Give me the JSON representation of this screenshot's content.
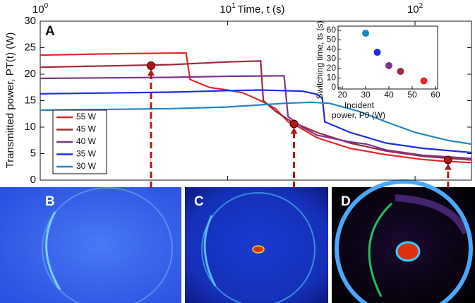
{
  "chart_data": [
    {
      "type": "line",
      "label": "A",
      "xlabel": "Time, t (s)",
      "ylabel": "Transmitted power, PT(t) (W)",
      "log_x": true,
      "xlim": [
        1,
        200
      ],
      "ylim": [
        0,
        30
      ],
      "xticks": [
        {
          "value": 1,
          "label": "10",
          "exponent": "0"
        },
        {
          "value": 10,
          "label": "10",
          "exponent": "1"
        },
        {
          "value": 100,
          "label": "10",
          "exponent": "2"
        }
      ],
      "yticks": [
        0,
        5,
        10,
        15,
        20,
        25,
        30
      ],
      "series": [
        {
          "name": "55 W",
          "color": "#e8262a",
          "x": [
            1,
            3,
            6,
            6.3,
            8,
            10,
            12,
            15,
            18,
            21,
            23,
            30,
            45,
            70,
            110,
            140,
            200
          ],
          "values": [
            23.6,
            23.9,
            24,
            19,
            17.5,
            17,
            16.5,
            15,
            13.5,
            11,
            10.4,
            8,
            6,
            4.8,
            3.9,
            3.6,
            3.3
          ]
        },
        {
          "name": "45 W",
          "color": "#9e2a3a",
          "x": [
            1,
            5,
            10,
            15,
            15.5,
            18,
            22,
            30,
            45,
            70,
            110,
            200
          ],
          "values": [
            21.3,
            21.8,
            22.3,
            22.5,
            15,
            13,
            11,
            9,
            7,
            5.5,
            4.5,
            3.8
          ]
        },
        {
          "name": "40 W",
          "color": "#7b3590",
          "x": [
            1,
            5,
            10,
            20,
            21,
            25,
            30,
            45,
            55,
            70,
            110,
            200
          ],
          "values": [
            19.2,
            19.4,
            19.6,
            19.7,
            12,
            10,
            8.5,
            7.2,
            6.8,
            5.7,
            4.7,
            4.1
          ]
        },
        {
          "name": "35 W",
          "color": "#1a2ee0",
          "x": [
            1,
            5,
            10,
            15,
            25,
            30,
            32,
            33,
            45,
            70,
            110,
            200
          ],
          "values": [
            16.3,
            16.6,
            16.9,
            17,
            16.8,
            16.2,
            15.5,
            11,
            9,
            7,
            6,
            5.2
          ]
        },
        {
          "name": "30 W",
          "color": "#1f86c0",
          "x": [
            1,
            5,
            10,
            20,
            28,
            35,
            50,
            70,
            100,
            150,
            200
          ],
          "values": [
            13.2,
            13.5,
            13.8,
            14.5,
            14.7,
            14.5,
            13,
            11,
            9,
            7.5,
            6.8
          ]
        }
      ],
      "markers": [
        {
          "x": 3.9,
          "y": 21.6
        },
        {
          "x": 22.6,
          "y": 10.6
        },
        {
          "x": 150,
          "y": 3.8
        }
      ],
      "legend": "lower left"
    },
    {
      "type": "scatter",
      "xlabel": [
        "Incident",
        "power, P0 (W)"
      ],
      "ylabel": "Switching time, ts (s)",
      "xlim": [
        20,
        60
      ],
      "ylim": [
        0,
        60
      ],
      "xticks": [
        20,
        30,
        40,
        50,
        60
      ],
      "yticks": [
        0,
        10,
        20,
        30,
        40,
        50,
        60
      ],
      "x": [
        30,
        35,
        40,
        45,
        55
      ],
      "values": [
        57,
        37,
        23,
        17,
        7
      ],
      "colors": [
        "#1f86c0",
        "#1a2ee0",
        "#7b3590",
        "#9e2a3a",
        "#e8262a"
      ]
    }
  ],
  "panels": [
    "B",
    "C",
    "D"
  ]
}
